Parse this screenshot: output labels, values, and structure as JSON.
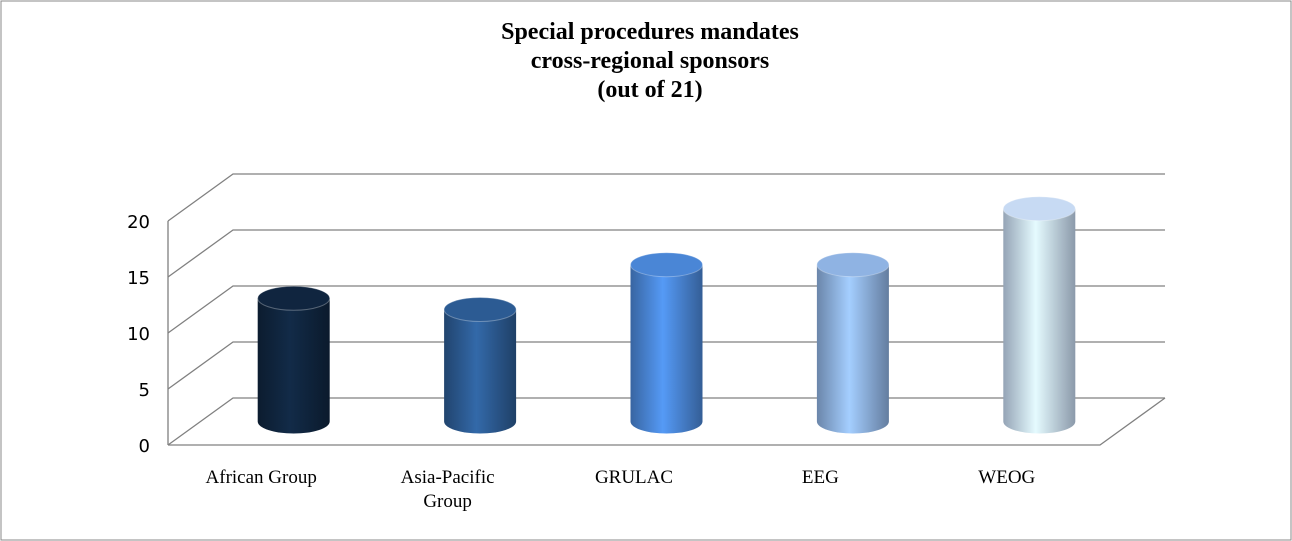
{
  "chart_data": {
    "type": "bar3d",
    "title": [
      "Special procedures mandates",
      "cross-regional sponsors",
      "(out of 21)"
    ],
    "categories": [
      "African Group",
      "Asia-Pacific Group",
      "GRULAC",
      "EEG",
      "WEOG"
    ],
    "values": [
      11,
      10,
      14,
      14,
      19
    ],
    "colors": [
      "#10253f",
      "#2c5b93",
      "#4a86d6",
      "#8fb3e3",
      "#c7daf3"
    ],
    "ylim": [
      0,
      20
    ],
    "yticks": [
      0,
      5,
      10,
      15,
      20
    ],
    "grid": true
  }
}
